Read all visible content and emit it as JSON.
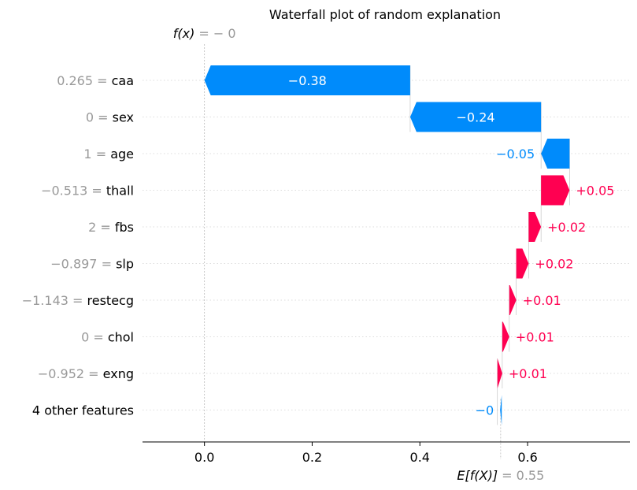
{
  "chart_data": {
    "type": "waterfall",
    "title": "Waterfall plot of random explanation",
    "fx_label": "f(x)",
    "fx_value_text": "= − 0",
    "fx_value": 0.0,
    "base_label": "E[f(X)]",
    "base_value_text": "= 0.55",
    "base_value": 0.55,
    "xlim": [
      -0.115,
      0.79
    ],
    "xticks": [
      0.0,
      0.2,
      0.4,
      0.6
    ],
    "xtick_labels": [
      "0.0",
      "0.2",
      "0.4",
      "0.6"
    ],
    "grid": "dotted horizontal",
    "features": [
      {
        "value": "0.265",
        "name": "caa",
        "start": 0.382,
        "end": 0.0,
        "label": "−0.38"
      },
      {
        "value": "0",
        "name": "sex",
        "start": 0.625,
        "end": 0.382,
        "label": "−0.24"
      },
      {
        "value": "1",
        "name": "age",
        "start": 0.678,
        "end": 0.625,
        "label": "−0.05"
      },
      {
        "value": "−0.513",
        "name": "thall",
        "start": 0.625,
        "end": 0.678,
        "label": "+0.05"
      },
      {
        "value": "2",
        "name": "fbs",
        "start": 0.602,
        "end": 0.625,
        "label": "+0.02"
      },
      {
        "value": "−0.897",
        "name": "slp",
        "start": 0.579,
        "end": 0.602,
        "label": "+0.02"
      },
      {
        "value": "−1.143",
        "name": "restecg",
        "start": 0.566,
        "end": 0.579,
        "label": "+0.01"
      },
      {
        "value": "0",
        "name": "chol",
        "start": 0.553,
        "end": 0.566,
        "label": "+0.01"
      },
      {
        "value": "−0.952",
        "name": "exng",
        "start": 0.544,
        "end": 0.553,
        "label": "+0.01"
      },
      {
        "value": "",
        "name": "4 other features",
        "start": 0.552,
        "end": 0.549,
        "label": "−0"
      }
    ],
    "colors": {
      "negative": "#008bfb",
      "positive": "#ff0051",
      "muted_text": "#999999",
      "text": "#000000",
      "axis": "#000000",
      "grid": "#dddddd"
    }
  }
}
